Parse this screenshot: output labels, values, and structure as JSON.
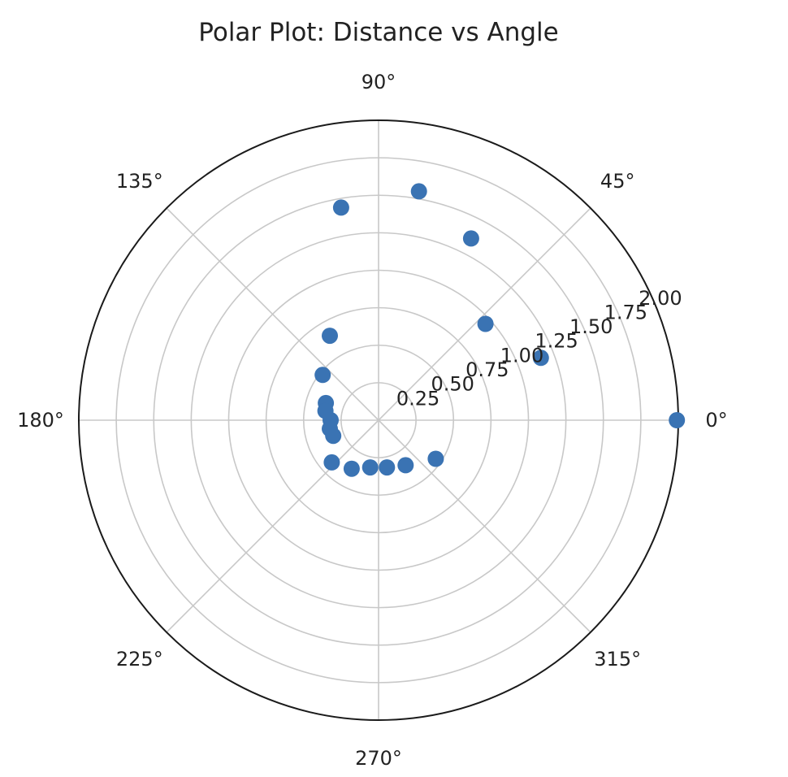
{
  "chart_data": {
    "type": "scatter",
    "title": "Polar Plot: Distance vs Angle",
    "coordinate_system": "polar",
    "angle_unit": "degrees",
    "angle_ticks": [
      "0°",
      "45°",
      "90°",
      "135°",
      "180°",
      "225°",
      "270°",
      "315°"
    ],
    "radial_ticks": [
      "0.25",
      "0.50",
      "0.75",
      "1.00",
      "1.25",
      "1.50",
      "1.75",
      "2.00"
    ],
    "rlim": [
      0,
      2.0
    ],
    "grid": true,
    "marker_color": "#3a73b3",
    "series": [
      {
        "theta": [
          0,
          21,
          42,
          63,
          80,
          100,
          120,
          141,
          162,
          170,
          180,
          190,
          199,
          222,
          241,
          260,
          280,
          301,
          326
        ],
        "r": [
          1.99,
          1.16,
          0.96,
          1.36,
          1.55,
          1.44,
          0.65,
          0.48,
          0.37,
          0.36,
          0.32,
          0.33,
          0.32,
          0.42,
          0.37,
          0.32,
          0.32,
          0.35,
          0.46
        ]
      }
    ]
  }
}
